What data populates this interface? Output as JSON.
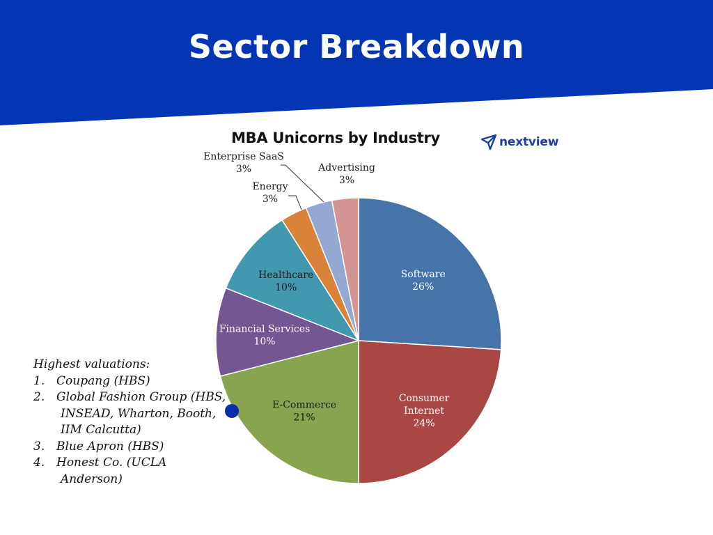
{
  "page": {
    "title": "Sector Breakdown",
    "header_color": "#0436b4"
  },
  "logo": {
    "text": "nextview",
    "color": "#1f3fa0",
    "icon": "paper-plane-icon"
  },
  "chart_data": {
    "type": "pie",
    "title": "MBA Unicorns by Industry",
    "value_suffix": "%",
    "slices": [
      {
        "name": "Software",
        "value": 26,
        "color": "#4774a8",
        "label_lines": [
          "Software"
        ],
        "label_color": "#ffffff"
      },
      {
        "name": "Consumer Internet",
        "value": 24,
        "color": "#a84744",
        "label_lines": [
          "Consumer",
          "Internet"
        ],
        "label_color": "#ffffff"
      },
      {
        "name": "E-Commerce",
        "value": 21,
        "color": "#88a44e",
        "label_lines": [
          "E-Commerce"
        ],
        "label_color": "#1a1a1a"
      },
      {
        "name": "Financial Services",
        "value": 10,
        "color": "#735692",
        "label_lines": [
          "Financial Services"
        ],
        "label_color": "#ffffff"
      },
      {
        "name": "Healthcare",
        "value": 10,
        "color": "#4298ae",
        "label_lines": [
          "Healthcare"
        ],
        "label_color": "#1a1a1a"
      },
      {
        "name": "Energy",
        "value": 3,
        "color": "#d8823a",
        "label_lines": [
          "Energy"
        ],
        "label_color": "#1a1a1a"
      },
      {
        "name": "Enterprise SaaS",
        "value": 3,
        "color": "#94a9d1",
        "label_lines": [
          "Enterprise SaaS"
        ],
        "label_color": "#1a1a1a"
      },
      {
        "name": "Advertising",
        "value": 3,
        "color": "#d39494",
        "label_lines": [
          "Advertising"
        ],
        "label_color": "#1a1a1a"
      }
    ]
  },
  "notes": {
    "heading": "Highest valuations:",
    "items": [
      {
        "num": "1.",
        "lines": [
          "Coupang (HBS)"
        ]
      },
      {
        "num": "2.",
        "lines": [
          "Global Fashion Group (HBS,",
          "INSEAD, Wharton, Booth,",
          "IIM Calcutta)"
        ]
      },
      {
        "num": "3.",
        "lines": [
          "Blue Apron (HBS)"
        ]
      },
      {
        "num": "4.",
        "lines": [
          "Honest Co. (UCLA",
          "Anderson)"
        ]
      }
    ]
  },
  "marker": {
    "color": "#0a2ea8"
  }
}
